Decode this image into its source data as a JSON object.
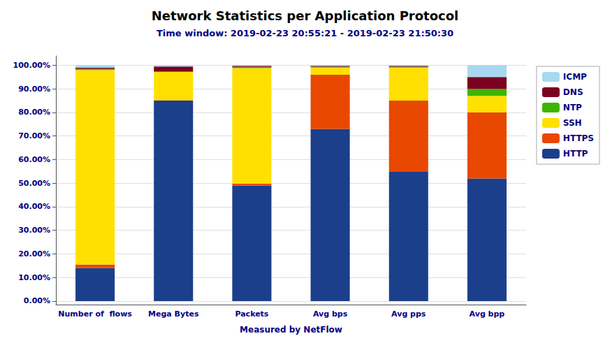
{
  "chart_data": {
    "type": "bar",
    "title": "Network Statistics per Application Protocol",
    "subtitle": "Time window: 2019-02-23 20:55:21 - 2019-02-23 21:50:30",
    "xlabel": "Measured by NetFlow",
    "categories": [
      "Number of  flows",
      "Mega Bytes",
      "Packets",
      "Avg bps",
      "Avg pps",
      "Avg bpp"
    ],
    "series": [
      {
        "name": "HTTP",
        "color": "#1b3f8b",
        "values": [
          14.0,
          85.0,
          49.0,
          73.0,
          55.0,
          52.0
        ]
      },
      {
        "name": "HTTPS",
        "color": "#e84800",
        "values": [
          1.5,
          0.2,
          0.8,
          23.0,
          30.0,
          28.0
        ]
      },
      {
        "name": "SSH",
        "color": "#ffe000",
        "values": [
          82.5,
          12.0,
          49.0,
          3.0,
          14.0,
          7.0
        ]
      },
      {
        "name": "NTP",
        "color": "#3cb400",
        "values": [
          0.5,
          0.1,
          0.5,
          0.4,
          0.4,
          3.0
        ]
      },
      {
        "name": "DNS",
        "color": "#7b0020",
        "values": [
          0.5,
          2.2,
          0.5,
          0.4,
          0.4,
          5.0
        ]
      },
      {
        "name": "ICMP",
        "color": "#a8d8f0",
        "values": [
          1.0,
          0.5,
          0.2,
          0.2,
          0.2,
          5.0
        ]
      }
    ],
    "stacked": true,
    "ylim": [
      -1.5,
      104
    ],
    "yticks": [
      {
        "value": 0,
        "label": "0.00%"
      },
      {
        "value": 10,
        "label": "10.00%"
      },
      {
        "value": 20,
        "label": "20.00%"
      },
      {
        "value": 30,
        "label": "30.00%"
      },
      {
        "value": 40,
        "label": "40.00%"
      },
      {
        "value": 50,
        "label": "50.00%"
      },
      {
        "value": 60,
        "label": "60.00%"
      },
      {
        "value": 70,
        "label": "70.00%"
      },
      {
        "value": 80,
        "label": "80.00%"
      },
      {
        "value": 90,
        "label": "90.00%"
      },
      {
        "value": 100,
        "label": "100.00%"
      }
    ],
    "grid": true,
    "legend": "right"
  }
}
